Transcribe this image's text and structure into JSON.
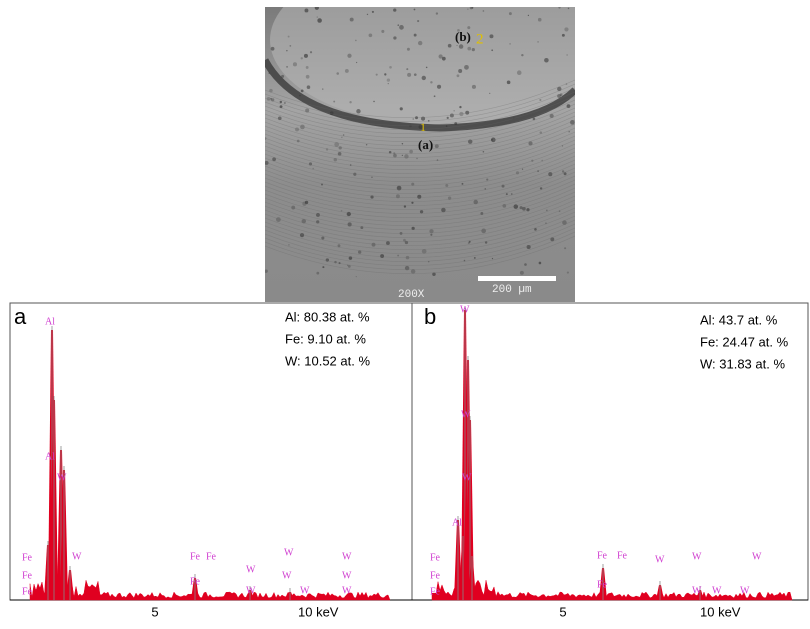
{
  "micrograph": {
    "labels": [
      "(b)",
      "2",
      "(a)",
      "1"
    ],
    "magnification": "200X",
    "scale_bar": "200 µm"
  },
  "panels": [
    {
      "label": "a",
      "composition": [
        "Al: 80.38 at. %",
        "Fe: 9.10 at. %",
        "W: 10.52 at. %"
      ],
      "x_tick_labels": [
        "5",
        "10 keV"
      ],
      "element_labels": [
        "Al",
        "Al",
        "W",
        "Fe",
        "W",
        "Fe",
        "Fe",
        "Fe",
        "Fe",
        "W",
        "W",
        "W",
        "W",
        "W",
        "Fe",
        "W",
        "W",
        "W"
      ]
    },
    {
      "label": "b",
      "composition": [
        "Al: 43.7 at. %",
        "Fe: 24.47 at. %",
        "W: 31.83 at. %"
      ],
      "x_tick_labels": [
        "5",
        "10 keV"
      ],
      "element_labels": [
        "W",
        "W",
        "W",
        "Al",
        "Fe",
        "Fe",
        "Fe",
        "Fe",
        "Fe",
        "W",
        "W",
        "W",
        "Fe",
        "W",
        "W",
        "W"
      ]
    }
  ]
}
